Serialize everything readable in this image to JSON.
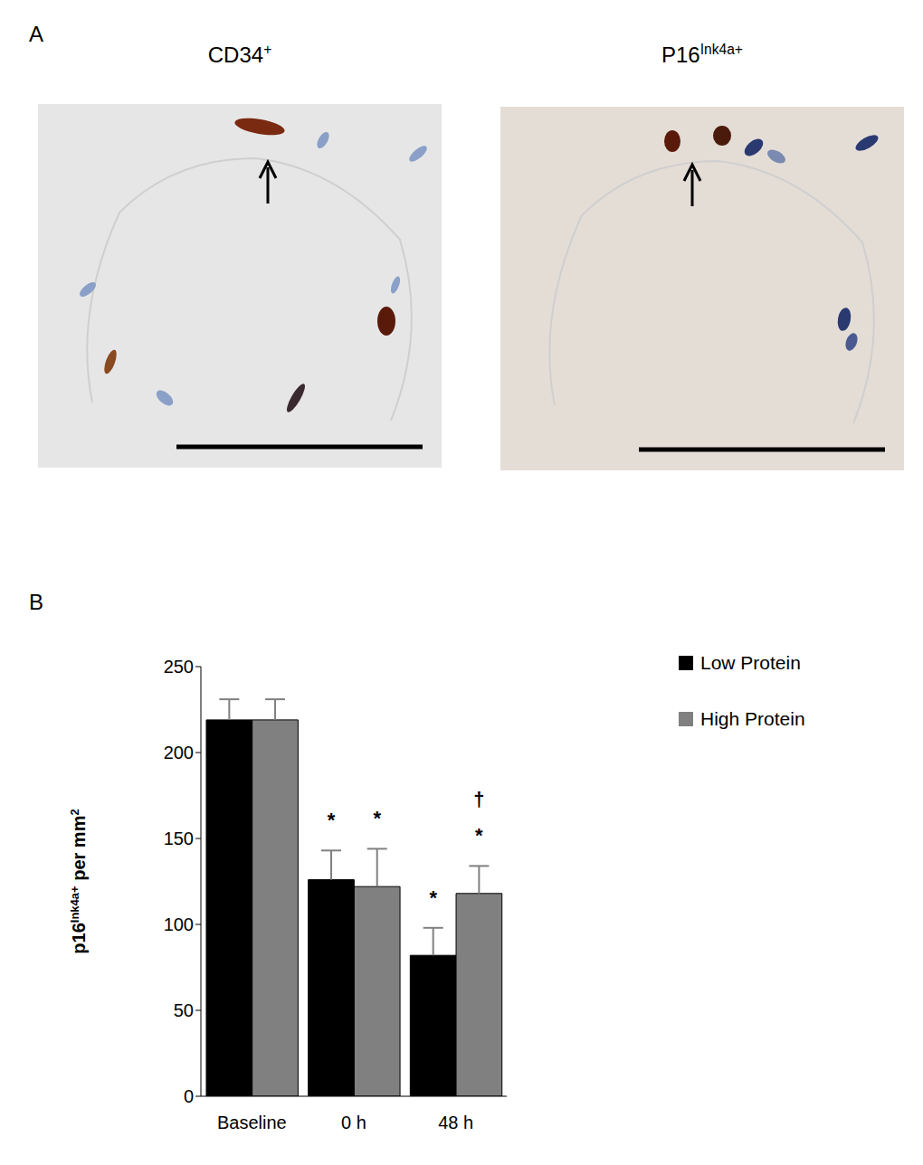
{
  "panel_a": {
    "label": "A",
    "images": [
      {
        "title": [
          {
            "text": "CD34"
          },
          {
            "text": "+",
            "sup": true
          }
        ]
      },
      {
        "title": [
          {
            "text": "P16"
          },
          {
            "text": "Ink4a+",
            "sup": true
          }
        ]
      }
    ]
  },
  "chart_data": {
    "panel_label": "B",
    "type": "bar",
    "categories": [
      "Baseline",
      "0 h",
      "48 h"
    ],
    "y_label": [
      {
        "text": "p16"
      },
      {
        "text": "Ink4a+",
        "sup": true
      },
      {
        "text": " per mm"
      },
      {
        "text": "2",
        "sup": true
      }
    ],
    "series": [
      {
        "name": "Low Protein",
        "color": "#000000",
        "values": [
          219,
          126,
          82
        ],
        "errors": [
          12,
          17,
          16
        ],
        "significance": [
          [],
          [
            "*"
          ],
          [
            "*"
          ]
        ]
      },
      {
        "name": "High Protein",
        "color": "#808080",
        "values": [
          219,
          122,
          118
        ],
        "errors": [
          12,
          22,
          16
        ],
        "significance": [
          [],
          [
            "*"
          ],
          [
            "*",
            "†"
          ]
        ]
      }
    ],
    "ylim": [
      0,
      250
    ],
    "yticks": [
      0,
      50,
      100,
      150,
      200,
      250
    ],
    "grid": false,
    "legend": "top-right"
  }
}
